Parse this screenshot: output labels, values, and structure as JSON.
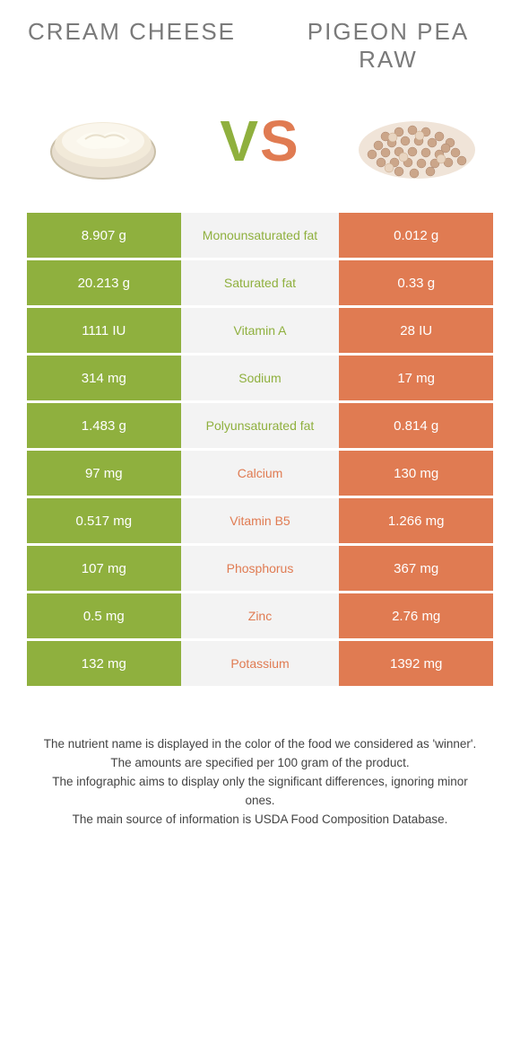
{
  "colors": {
    "left": "#8fb03e",
    "right": "#e07b52",
    "mid_bg": "#f3f3f3",
    "text_white": "#ffffff"
  },
  "food_left": {
    "title": "CREAM CHEESE"
  },
  "food_right": {
    "title": "PIGEON PEA RAW"
  },
  "vs": "VS",
  "rows": [
    {
      "left": "8.907 g",
      "label": "Monounsaturated fat",
      "right": "0.012 g",
      "winner": "left"
    },
    {
      "left": "20.213 g",
      "label": "Saturated fat",
      "right": "0.33 g",
      "winner": "left"
    },
    {
      "left": "1111 IU",
      "label": "Vitamin A",
      "right": "28 IU",
      "winner": "left"
    },
    {
      "left": "314 mg",
      "label": "Sodium",
      "right": "17 mg",
      "winner": "left"
    },
    {
      "left": "1.483 g",
      "label": "Polyunsaturated fat",
      "right": "0.814 g",
      "winner": "left"
    },
    {
      "left": "97 mg",
      "label": "Calcium",
      "right": "130 mg",
      "winner": "right"
    },
    {
      "left": "0.517 mg",
      "label": "Vitamin B5",
      "right": "1.266 mg",
      "winner": "right"
    },
    {
      "left": "107 mg",
      "label": "Phosphorus",
      "right": "367 mg",
      "winner": "right"
    },
    {
      "left": "0.5 mg",
      "label": "Zinc",
      "right": "2.76 mg",
      "winner": "right"
    },
    {
      "left": "132 mg",
      "label": "Potassium",
      "right": "1392 mg",
      "winner": "right"
    }
  ],
  "footer": [
    "The nutrient name is displayed in the color of the food we considered as 'winner'.",
    "The amounts are specified per 100 gram of the product.",
    "The infographic aims to display only the significant differences, ignoring minor ones.",
    "The main source of information is USDA Food Composition Database."
  ]
}
